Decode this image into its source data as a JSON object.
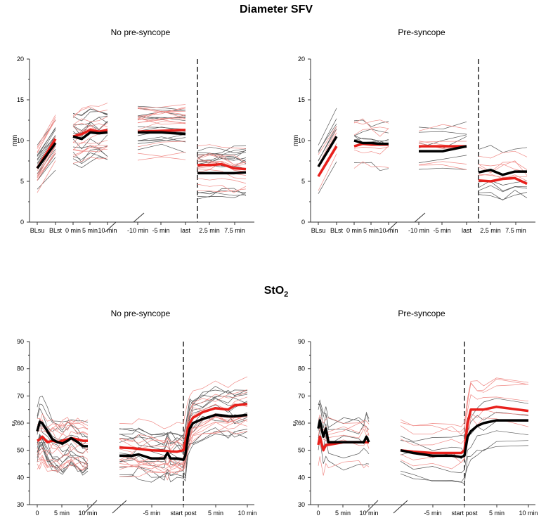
{
  "chart_data": [
    {
      "type": "line",
      "figure_title": "Diameter SFV",
      "title": "No pre-syncope",
      "ylabel": "mm",
      "ylim": [
        0,
        20
      ],
      "yticks": [
        0,
        5,
        10,
        15,
        20
      ],
      "xticks": [
        "BLsu",
        "BLst",
        "0 min",
        "5 min",
        "10 min",
        "-10 min",
        "-5 min",
        "last",
        "2.5 min",
        "7.5 min"
      ],
      "segments": [
        {
          "name": "baseline",
          "x": [
            0,
            1
          ],
          "series": [
            {
              "name": "group mean (black)",
              "color": "#000000",
              "values": [
                6.6,
                9.7
              ]
            },
            {
              "name": "group mean (red)",
              "color": "#e8201c",
              "values": [
                6.6,
                10.2
              ]
            }
          ]
        },
        {
          "name": "supine",
          "x": [
            0,
            2.5,
            5,
            7.5,
            10
          ],
          "series": [
            {
              "name": "black",
              "color": "#000000",
              "values": [
                10.5,
                10.2,
                11.0,
                10.9,
                11.0
              ]
            },
            {
              "name": "red",
              "color": "#e8201c",
              "values": [
                10.5,
                10.8,
                11.3,
                11.1,
                11.3
              ]
            }
          ]
        },
        {
          "name": "tilt",
          "x": [
            -10,
            -5,
            0
          ],
          "series": [
            {
              "name": "black",
              "color": "#000000",
              "values": [
                11.0,
                11.0,
                10.8
              ]
            },
            {
              "name": "red",
              "color": "#e8201c",
              "values": [
                11.1,
                11.2,
                11.3
              ]
            }
          ]
        },
        {
          "name": "post",
          "x": [
            0,
            2.5,
            5,
            7.5,
            10
          ],
          "series": [
            {
              "name": "black",
              "color": "#000000",
              "values": [
                6.0,
                6.0,
                6.0,
                6.0,
                6.1
              ]
            },
            {
              "name": "red",
              "color": "#e8201c",
              "values": [
                7.0,
                7.0,
                7.1,
                6.6,
                6.5
              ]
            }
          ]
        }
      ]
    },
    {
      "type": "line",
      "title": "Pre-syncope",
      "ylabel": "mm",
      "ylim": [
        0,
        20
      ],
      "yticks": [
        0,
        5,
        10,
        15,
        20
      ],
      "xticks": [
        "BLsu",
        "BLst",
        "0 min",
        "5 min",
        "10 min",
        "-10 min",
        "-5 min",
        "last",
        "2.5 min",
        "7.5 min"
      ],
      "segments": [
        {
          "name": "baseline",
          "x": [
            0,
            1
          ],
          "series": [
            {
              "name": "black",
              "color": "#000000",
              "values": [
                6.8,
                10.5
              ]
            },
            {
              "name": "red",
              "color": "#e8201c",
              "values": [
                5.6,
                9.3
              ]
            }
          ]
        },
        {
          "name": "supine",
          "x": [
            0,
            2.5,
            5,
            7.5,
            10
          ],
          "series": [
            {
              "name": "black",
              "color": "#000000",
              "values": [
                10.0,
                9.7,
                9.7,
                9.6,
                9.6
              ]
            },
            {
              "name": "red",
              "color": "#e8201c",
              "values": [
                9.3,
                9.6,
                9.5,
                9.5,
                9.5
              ]
            }
          ]
        },
        {
          "name": "tilt",
          "x": [
            -10,
            -5,
            0
          ],
          "series": [
            {
              "name": "black",
              "color": "#000000",
              "values": [
                8.7,
                8.7,
                9.3
              ]
            },
            {
              "name": "red",
              "color": "#e8201c",
              "values": [
                9.3,
                9.3,
                9.3
              ]
            }
          ]
        },
        {
          "name": "post",
          "x": [
            0,
            2.5,
            5,
            7.5,
            10
          ],
          "series": [
            {
              "name": "black",
              "color": "#000000",
              "values": [
                6.1,
                6.4,
                5.8,
                6.2,
                6.2
              ]
            },
            {
              "name": "red",
              "color": "#e8201c",
              "values": [
                5.1,
                5.0,
                5.3,
                5.4,
                4.7
              ]
            }
          ]
        }
      ]
    },
    {
      "type": "line",
      "figure_title": "StO",
      "figure_title_sub": "2",
      "title": "No pre-syncope",
      "ylabel": "%",
      "ylim": [
        30,
        90
      ],
      "yticks": [
        30,
        40,
        50,
        60,
        70,
        80,
        90
      ],
      "xticks": [
        "0",
        "5 min",
        "10 min",
        "-5 min",
        "start post",
        "5 min",
        "10 min"
      ],
      "segments": [
        {
          "name": "supine",
          "x": [
            0,
            0.5,
            1,
            2,
            3,
            4,
            5,
            6,
            6.7,
            8,
            9,
            10
          ],
          "series": [
            {
              "name": "black",
              "color": "#000000",
              "values": [
                57,
                60.5,
                60,
                57,
                54,
                53,
                52.5,
                53.5,
                54.5,
                53,
                51.5,
                51.5
              ]
            },
            {
              "name": "red",
              "color": "#e8201c",
              "values": [
                53.5,
                54,
                55,
                53,
                53.5,
                53,
                53.5,
                54,
                54.5,
                54,
                53.5,
                53.5
              ]
            }
          ]
        },
        {
          "name": "tilt-post",
          "x": [
            -10,
            -8,
            -7,
            -5,
            -3,
            -2.5,
            -2,
            -1,
            0,
            0.3,
            0.7,
            1,
            1.5,
            3,
            5,
            7,
            8,
            10
          ],
          "series": [
            {
              "name": "black",
              "color": "#000000",
              "values": [
                48,
                48,
                48.5,
                47,
                47,
                49,
                47,
                47,
                46.5,
                48,
                55,
                58,
                60,
                61.5,
                63,
                62.5,
                62.5,
                63
              ]
            },
            {
              "name": "red",
              "color": "#e8201c",
              "values": [
                51,
                50.8,
                50.5,
                50,
                49.8,
                49.7,
                49.6,
                49.5,
                50,
                53,
                58,
                60,
                62,
                64,
                65.5,
                65,
                66.5,
                67
              ]
            }
          ]
        }
      ]
    },
    {
      "type": "line",
      "title": "Pre-syncope",
      "ylabel": "%",
      "ylim": [
        30,
        90
      ],
      "yticks": [
        30,
        40,
        50,
        60,
        70,
        80,
        90
      ],
      "xticks": [
        "0",
        "5 min",
        "10 min",
        "-5 min",
        "start post",
        "5 min",
        "10 min"
      ],
      "segments": [
        {
          "name": "supine",
          "x": [
            0,
            0.3,
            1,
            1.5,
            2,
            5,
            8,
            9,
            9.5,
            10
          ],
          "series": [
            {
              "name": "black",
              "color": "#000000",
              "values": [
                58,
                61,
                55,
                58,
                53,
                53,
                53,
                53,
                55,
                53
              ]
            },
            {
              "name": "red",
              "color": "#e8201c",
              "values": [
                52,
                55,
                50,
                52,
                52,
                53,
                53,
                53,
                53,
                53
              ]
            }
          ]
        },
        {
          "name": "tilt-post",
          "x": [
            -10,
            -8,
            -5,
            -2,
            -0.5,
            0,
            0.5,
            1,
            2,
            3,
            5,
            10
          ],
          "series": [
            {
              "name": "black",
              "color": "#000000",
              "values": [
                50,
                49,
                48,
                48,
                47.5,
                48,
                55,
                57,
                59,
                60,
                61,
                61
              ]
            },
            {
              "name": "red",
              "color": "#e8201c",
              "values": [
                50,
                49.5,
                49,
                49,
                49,
                50,
                60,
                65,
                65,
                65,
                66,
                64.5
              ]
            }
          ]
        }
      ]
    }
  ]
}
